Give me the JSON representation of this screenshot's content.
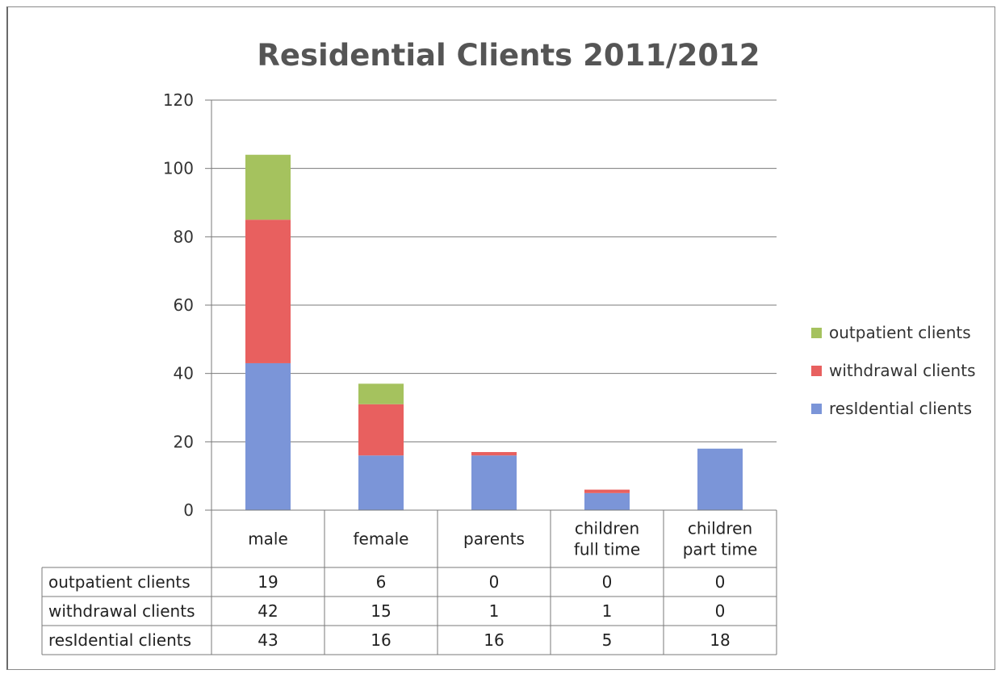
{
  "chart_data": {
    "type": "bar",
    "stacked": true,
    "title": "Residential Clients 2011/2012",
    "categories": [
      "male",
      "female",
      "parents",
      "children full time",
      "children part time"
    ],
    "category_lines": [
      [
        "male"
      ],
      [
        "female"
      ],
      [
        "parents"
      ],
      [
        "children",
        "full time"
      ],
      [
        "children",
        "part time"
      ]
    ],
    "series": [
      {
        "name": "resIdential clients",
        "color": "#7b95d8",
        "values": [
          43,
          16,
          16,
          5,
          18
        ]
      },
      {
        "name": "withdrawal clients",
        "color": "#e8605f",
        "values": [
          42,
          15,
          1,
          1,
          0
        ]
      },
      {
        "name": "outpatient clients",
        "color": "#a5c25e",
        "values": [
          19,
          6,
          0,
          0,
          0
        ]
      }
    ],
    "legend_order": [
      "outpatient clients",
      "withdrawal clients",
      "resIdential clients"
    ],
    "table_row_order": [
      "outpatient clients",
      "withdrawal clients",
      "resIdential clients"
    ],
    "ylim": [
      0,
      120
    ],
    "yticks": [
      0,
      20,
      40,
      60,
      80,
      100,
      120
    ],
    "grid": true,
    "legend_position": "right",
    "data_table": true
  }
}
